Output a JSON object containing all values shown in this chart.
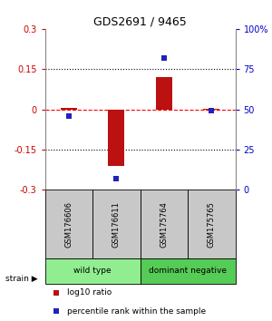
{
  "title": "GDS2691 / 9465",
  "samples": [
    "GSM176606",
    "GSM176611",
    "GSM175764",
    "GSM175765"
  ],
  "log10_ratio": [
    0.005,
    -0.21,
    0.12,
    0.003
  ],
  "percentile_rank": [
    46,
    7,
    82,
    49
  ],
  "groups": [
    {
      "label": "wild type",
      "cols": [
        0,
        1
      ],
      "color": "#90EE90"
    },
    {
      "label": "dominant negative",
      "cols": [
        2,
        3
      ],
      "color": "#55CC55"
    }
  ],
  "ylim_left": [
    -0.3,
    0.3
  ],
  "ylim_right": [
    0,
    100
  ],
  "yticks_left": [
    -0.3,
    -0.15,
    0,
    0.15,
    0.3
  ],
  "yticks_right": [
    0,
    25,
    50,
    75,
    100
  ],
  "ytick_labels_right": [
    "0",
    "25",
    "50",
    "75",
    "100%"
  ],
  "hlines_dotted": [
    -0.15,
    0.15
  ],
  "bar_color": "#BB1111",
  "dot_color": "#2222BB",
  "bar_width": 0.35,
  "dot_size": 25,
  "left_tick_color": "#CC0000",
  "right_tick_color": "#0000CC",
  "legend_bar_label": "log10 ratio",
  "legend_dot_label": "percentile rank within the sample",
  "strain_label": "strain",
  "gray_box_color": "#C8C8C8"
}
